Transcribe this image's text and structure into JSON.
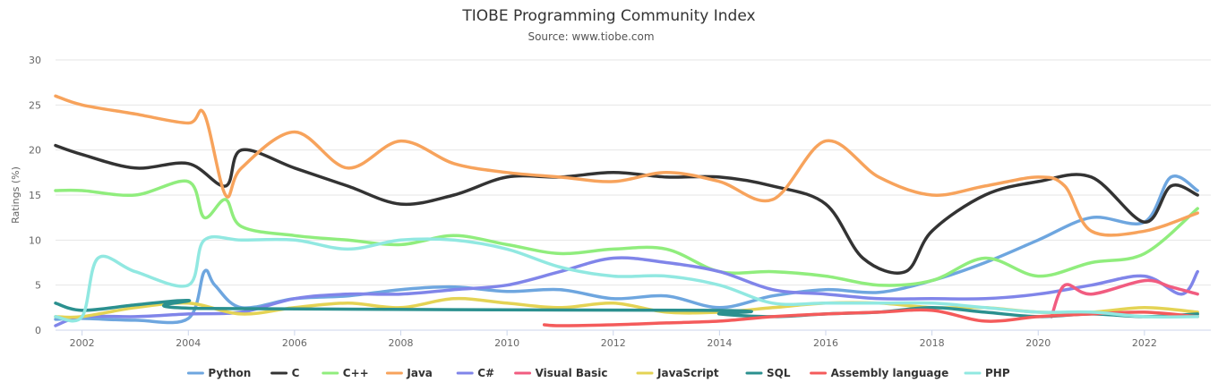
{
  "chart_data": {
    "type": "line",
    "title": "TIOBE Programming Community Index",
    "subtitle": "Source: www.tiobe.com",
    "ylabel": "Ratings (%)",
    "xlabel": "",
    "ylim": [
      0,
      30
    ],
    "xlim": [
      2001.5,
      2023.25
    ],
    "yticks": [
      0,
      5,
      10,
      15,
      20,
      25,
      30
    ],
    "xticks": [
      2002,
      2004,
      2006,
      2008,
      2010,
      2012,
      2014,
      2016,
      2018,
      2020,
      2022
    ],
    "grid": true,
    "legend": "bottom",
    "series": [
      {
        "name": "Python",
        "color": "#6ea6df",
        "x": [
          2001.5,
          2002,
          2003,
          2004,
          2004.3,
          2004.5,
          2005,
          2006,
          2007,
          2008,
          2009,
          2010,
          2011,
          2012,
          2013,
          2014,
          2015,
          2016,
          2017,
          2018,
          2019,
          2020,
          2021,
          2022,
          2022.5,
          2023
        ],
        "y": [
          1.2,
          1.3,
          1.1,
          1.3,
          6.5,
          5.0,
          2.5,
          3.5,
          3.8,
          4.5,
          4.8,
          4.3,
          4.5,
          3.5,
          3.8,
          2.5,
          3.8,
          4.5,
          4.2,
          5.5,
          7.5,
          10.0,
          12.5,
          12.0,
          17.0,
          15.5
        ]
      },
      {
        "name": "C",
        "color": "#333333",
        "x": [
          2001.5,
          2002,
          2003,
          2004,
          2004.7,
          2005,
          2006,
          2007,
          2008,
          2009,
          2010,
          2011,
          2012,
          2013,
          2014,
          2015,
          2016,
          2016.7,
          2017.5,
          2018,
          2019,
          2020,
          2021,
          2022,
          2022.5,
          2023
        ],
        "y": [
          20.5,
          19.5,
          18.0,
          18.5,
          16.0,
          20.0,
          18.0,
          16.0,
          14.0,
          15.0,
          17.0,
          17.0,
          17.5,
          17.0,
          17.0,
          16.0,
          14.0,
          8.0,
          6.5,
          11.0,
          15.0,
          16.5,
          17.0,
          12.0,
          16.0,
          15.0
        ]
      },
      {
        "name": "C++",
        "color": "#90ed7d",
        "x": [
          2001.5,
          2002,
          2003,
          2004,
          2004.3,
          2004.7,
          2005,
          2006,
          2007,
          2008,
          2009,
          2010,
          2011,
          2012,
          2013,
          2014,
          2015,
          2016,
          2017,
          2018,
          2019,
          2020,
          2021,
          2022,
          2023
        ],
        "y": [
          15.5,
          15.5,
          15.0,
          16.5,
          12.5,
          14.5,
          11.5,
          10.5,
          10.0,
          9.5,
          10.5,
          9.5,
          8.5,
          9.0,
          9.0,
          6.5,
          6.5,
          6.0,
          5.0,
          5.5,
          8.0,
          6.0,
          7.5,
          8.5,
          13.5
        ]
      },
      {
        "name": "Java",
        "color": "#f7a35c",
        "x": [
          2001.5,
          2002,
          2003,
          2004,
          2004.3,
          2004.7,
          2005,
          2006,
          2007,
          2008,
          2009,
          2010,
          2011,
          2012,
          2013,
          2014,
          2015,
          2016,
          2017,
          2018,
          2019,
          2020,
          2020.5,
          2021,
          2022,
          2023
        ],
        "y": [
          26.0,
          25.0,
          24.0,
          23.0,
          24.0,
          15.0,
          18.0,
          22.0,
          18.0,
          21.0,
          18.5,
          17.5,
          17.0,
          16.5,
          17.5,
          16.5,
          14.5,
          21.0,
          17.0,
          15.0,
          16.0,
          17.0,
          16.0,
          11.0,
          11.0,
          13.0
        ]
      },
      {
        "name": "C#",
        "color": "#8085e9",
        "x": [
          2001.5,
          2002,
          2003,
          2004,
          2005,
          2006,
          2007,
          2008,
          2009,
          2010,
          2011,
          2012,
          2013,
          2014,
          2015,
          2016,
          2017,
          2018,
          2019,
          2020,
          2021,
          2022,
          2022.7,
          2023
        ],
        "y": [
          0.5,
          1.5,
          1.5,
          1.8,
          2.0,
          3.5,
          4.0,
          4.0,
          4.5,
          5.0,
          6.5,
          8.0,
          7.5,
          6.5,
          4.5,
          4.0,
          3.5,
          3.5,
          3.5,
          4.0,
          5.0,
          6.0,
          4.0,
          6.5
        ]
      },
      {
        "name": "Visual Basic",
        "color": "#f15c80",
        "x": [
          2020.25,
          2020.5,
          2021,
          2022,
          2022.5,
          2023
        ],
        "y": [
          1.5,
          5.0,
          4.0,
          5.5,
          4.8,
          4.0
        ]
      },
      {
        "name": "JavaScript",
        "color": "#e4d354",
        "x": [
          2001.5,
          2002,
          2003,
          2004,
          2005,
          2006,
          2007,
          2008,
          2009,
          2010,
          2011,
          2012,
          2013,
          2014,
          2015,
          2016,
          2017,
          2018,
          2019,
          2020,
          2021,
          2022,
          2023
        ],
        "y": [
          1.5,
          1.5,
          2.5,
          3.0,
          1.8,
          2.5,
          3.0,
          2.5,
          3.5,
          3.0,
          2.5,
          3.0,
          2.0,
          2.0,
          2.5,
          3.0,
          3.0,
          2.5,
          2.5,
          2.0,
          2.0,
          2.5,
          2.0
        ]
      },
      {
        "name": "SQL",
        "color": "#2b908f",
        "x": [
          2001.5,
          2002,
          2003,
          2004,
          2004.3,
          2013.9,
          2014,
          2015,
          2016,
          2017,
          2018,
          2019,
          2020,
          2021,
          2022,
          2023
        ],
        "y": [
          3.0,
          2.2,
          2.8,
          3.3,
          2.4,
          2.2,
          1.8,
          1.5,
          1.8,
          2.0,
          2.5,
          2.0,
          1.5,
          1.8,
          1.5,
          1.8
        ]
      },
      {
        "name": "Assembly language",
        "color": "#f45b5b",
        "x": [
          2010.7,
          2011,
          2012,
          2013,
          2014,
          2015,
          2016,
          2017,
          2018,
          2019,
          2020,
          2021,
          2022,
          2023
        ],
        "y": [
          0.6,
          0.5,
          0.6,
          0.8,
          1.0,
          1.5,
          1.8,
          2.0,
          2.2,
          1.0,
          1.5,
          1.8,
          2.0,
          1.5
        ]
      },
      {
        "name": "PHP",
        "color": "#91e8e1",
        "x": [
          2001.5,
          2002,
          2002.3,
          2003,
          2004,
          2004.3,
          2005,
          2006,
          2007,
          2008,
          2009,
          2010,
          2011,
          2012,
          2013,
          2014,
          2015,
          2016,
          2017,
          2018,
          2019,
          2020,
          2021,
          2022,
          2023
        ],
        "y": [
          1.5,
          1.5,
          8.0,
          6.5,
          5.0,
          10.0,
          10.0,
          10.0,
          9.0,
          10.0,
          10.0,
          9.0,
          7.0,
          6.0,
          6.0,
          5.0,
          3.0,
          3.0,
          3.0,
          3.0,
          2.5,
          2.0,
          2.0,
          1.5,
          1.5
        ]
      }
    ]
  }
}
